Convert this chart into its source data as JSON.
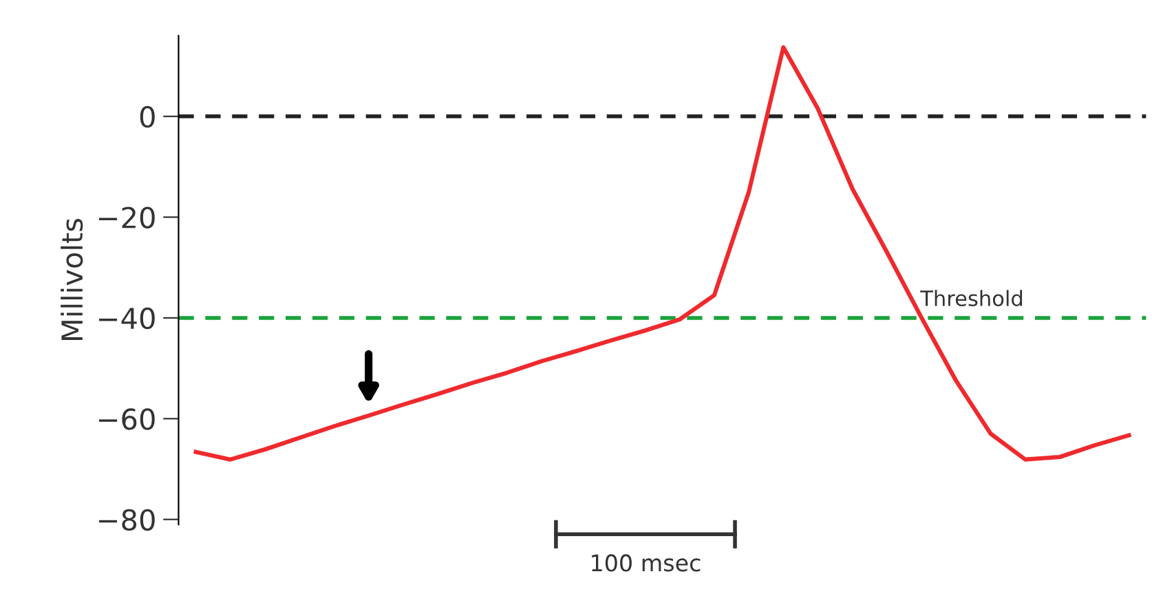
{
  "chart_data": {
    "type": "line",
    "ylabel": "Millivolts",
    "categories": [
      null,
      null,
      null,
      null,
      null,
      null,
      null,
      null,
      null,
      null,
      null,
      null,
      null,
      null,
      null,
      null,
      null,
      null,
      null,
      null,
      null,
      null,
      null,
      null,
      null,
      null,
      null,
      null
    ],
    "series": [
      {
        "color": "#ee2a2e",
        "values": [
          -66.6,
          -68.1,
          -66.1,
          -63.8,
          -61.5,
          -59.4,
          -57.2,
          -55.1,
          -52.9,
          -50.9,
          -48.6,
          -46.6,
          -44.5,
          -42.5,
          -40.3,
          -35.5,
          -15.0,
          13.7,
          1.5,
          -14.4,
          -27.0,
          -40.0,
          -52.5,
          -63.0,
          -68.1,
          -67.6,
          -65.3,
          -63.3
        ]
      }
    ],
    "ylim": [
      -81,
      16
    ],
    "yticks": [
      0,
      {
        "value": -20,
        "label": "−20"
      },
      {
        "value": -40,
        "label": "−40"
      },
      {
        "value": -60,
        "label": "−60"
      },
      {
        "value": -80,
        "label": "−80"
      }
    ],
    "tick_labels": "y",
    "grid": false,
    "legend": false,
    "marker": "none",
    "line_style": "solid",
    "ref_lines": [
      {
        "axis": "y",
        "value": 0,
        "label": null,
        "color": "#222222",
        "line_style": "dashed"
      },
      {
        "axis": "y",
        "value": -40,
        "label": "Threshold",
        "color": "#1aa33a",
        "line_style": "dashed"
      }
    ],
    "annotations": [
      "100 msec"
    ]
  }
}
